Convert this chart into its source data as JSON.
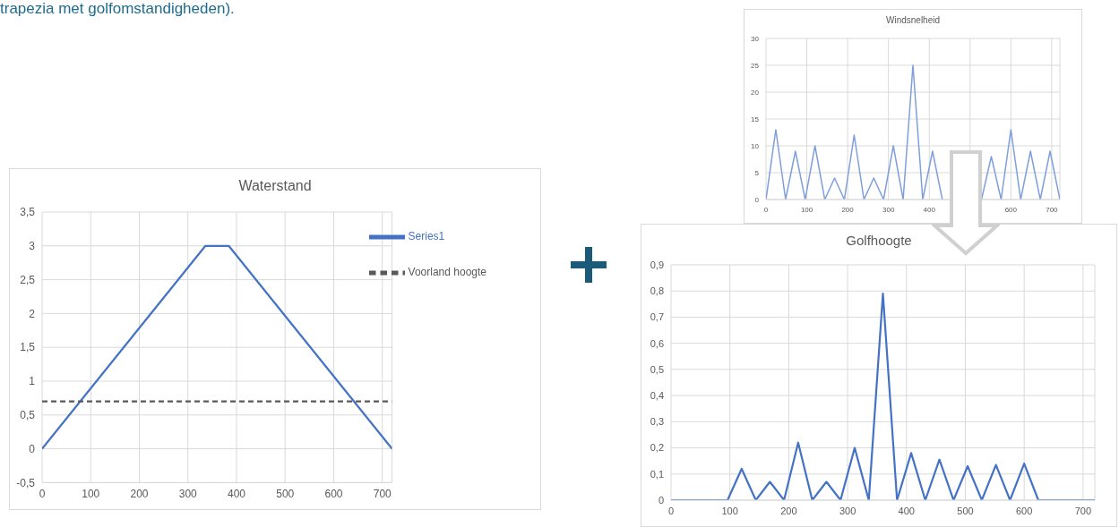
{
  "chart_data": [
    {
      "type": "line",
      "title": "Waterstand",
      "annotations": [
        "trapezia met golfomstandigheden)."
      ],
      "xlim": [
        0,
        720
      ],
      "xticks": [
        0,
        100,
        200,
        300,
        400,
        500,
        600,
        700
      ],
      "ylim": [
        -0.5,
        3.5
      ],
      "yticks": [
        {
          "value": -0.5,
          "label": "-0,5"
        },
        0,
        {
          "value": 0.5,
          "label": "0,5"
        },
        1,
        {
          "value": 1.5,
          "label": "1,5"
        },
        2,
        {
          "value": 2.5,
          "label": "2,5"
        },
        3,
        {
          "value": 3.5,
          "label": "3,5"
        }
      ],
      "grid": true,
      "legend": "top right",
      "series": [
        {
          "name": "Series1",
          "color": "#4472c4",
          "x": [
            0,
            336,
            384,
            720
          ],
          "values": [
            0,
            3,
            3,
            0
          ]
        },
        {
          "name": "Voorland hoogte",
          "color": "#595959",
          "line_style": "dashed",
          "x": [
            0,
            720
          ],
          "values": [
            0.7,
            0.7
          ]
        }
      ]
    },
    {
      "type": "line",
      "title": "Windsnelheid",
      "x": [
        0,
        24,
        48,
        72,
        96,
        120,
        144,
        168,
        192,
        216,
        240,
        264,
        288,
        312,
        336,
        360,
        384,
        408,
        432,
        456,
        480,
        504,
        528,
        552,
        576,
        600,
        624,
        648,
        672,
        696,
        720
      ],
      "xlim": [
        0,
        720
      ],
      "xticks": [
        0,
        100,
        200,
        300,
        400,
        {
          "value": 500,
          "label": null
        },
        600,
        700
      ],
      "ylim": [
        0,
        30
      ],
      "yticks": [
        0,
        5,
        10,
        15,
        20,
        25,
        30
      ],
      "grid": true,
      "series": [
        {
          "color": "#7f9fdc",
          "values": [
            0,
            13,
            0,
            9,
            0,
            10,
            0,
            4,
            0,
            12,
            0,
            4,
            0,
            10,
            0,
            25,
            0,
            9,
            0,
            null,
            null,
            null,
            0,
            8,
            0,
            13,
            0,
            9,
            0,
            9,
            0
          ]
        }
      ]
    },
    {
      "type": "line",
      "title": "Golfhoogte",
      "x": [
        0,
        24,
        48,
        72,
        96,
        120,
        144,
        168,
        192,
        216,
        240,
        264,
        288,
        312,
        336,
        360,
        384,
        408,
        432,
        456,
        480,
        504,
        528,
        552,
        576,
        600,
        624,
        648,
        672,
        696,
        720
      ],
      "xlim": [
        0,
        720
      ],
      "xticks": [
        0,
        100,
        200,
        300,
        400,
        500,
        600,
        700
      ],
      "ylim": [
        0,
        0.9
      ],
      "yticks": [
        0,
        {
          "value": 0.1,
          "label": "0,1"
        },
        {
          "value": 0.2,
          "label": "0,2"
        },
        {
          "value": 0.3,
          "label": "0,3"
        },
        {
          "value": 0.4,
          "label": "0,4"
        },
        {
          "value": 0.5,
          "label": "0,5"
        },
        {
          "value": 0.6,
          "label": "0,6"
        },
        {
          "value": 0.7,
          "label": "0,7"
        },
        {
          "value": 0.8,
          "label": "0,8"
        },
        {
          "value": 0.9,
          "label": "0,9"
        }
      ],
      "grid": true,
      "series": [
        {
          "color": "#4472c4",
          "values": [
            0,
            0,
            0,
            0,
            0,
            0.12,
            0,
            0.07,
            0,
            0.22,
            0,
            0.07,
            0,
            0.2,
            0,
            0.79,
            0,
            0.18,
            0,
            0.155,
            0,
            0.13,
            0,
            0.135,
            0,
            0.14,
            0,
            0,
            0,
            0,
            0
          ]
        }
      ]
    }
  ]
}
